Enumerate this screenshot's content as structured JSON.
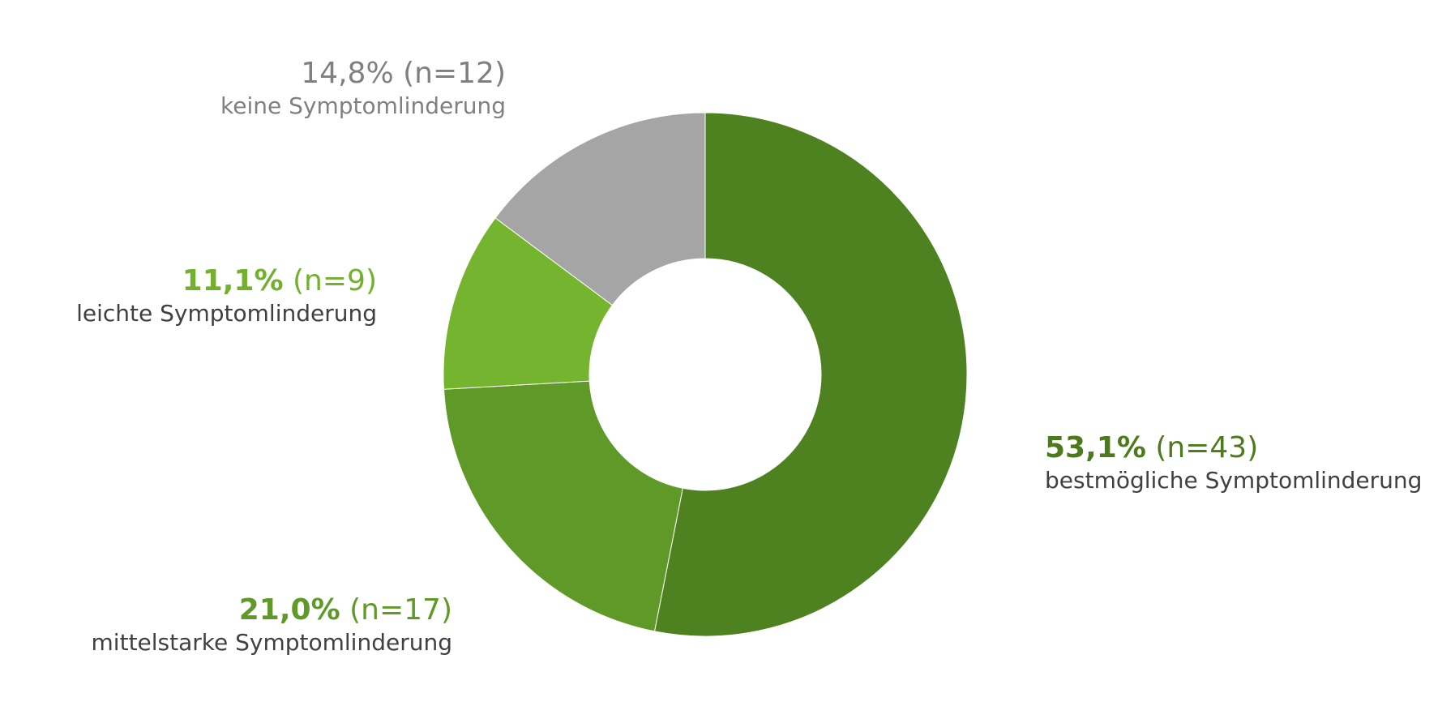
{
  "chart_data": {
    "type": "pie",
    "style": "donut",
    "title": "",
    "slices": [
      {
        "label": "bestmögliche Symptomlinderung",
        "percent_text": "53,1%",
        "n_text": "(n=43)",
        "value": 53.1,
        "n": 43,
        "color": "#4e8220",
        "label_color": "#4e7a1e"
      },
      {
        "label": "mittelstarke Symptomlinderung",
        "percent_text": "21,0%",
        "n_text": "(n=17)",
        "value": 21.0,
        "n": 17,
        "color": "#5f9a28",
        "label_color": "#5f9a28"
      },
      {
        "label": "leichte Symptomlinderung",
        "percent_text": "11,1%",
        "n_text": "(n=9)",
        "value": 11.1,
        "n": 9,
        "color": "#75b42f",
        "label_color": "#72b02e"
      },
      {
        "label": "keine Symptomlinderung",
        "percent_text": "14,8%",
        "n_text": "(n=12)",
        "value": 14.8,
        "n": 12,
        "color": "#a5a5a5",
        "label_color": "#808080"
      }
    ]
  }
}
